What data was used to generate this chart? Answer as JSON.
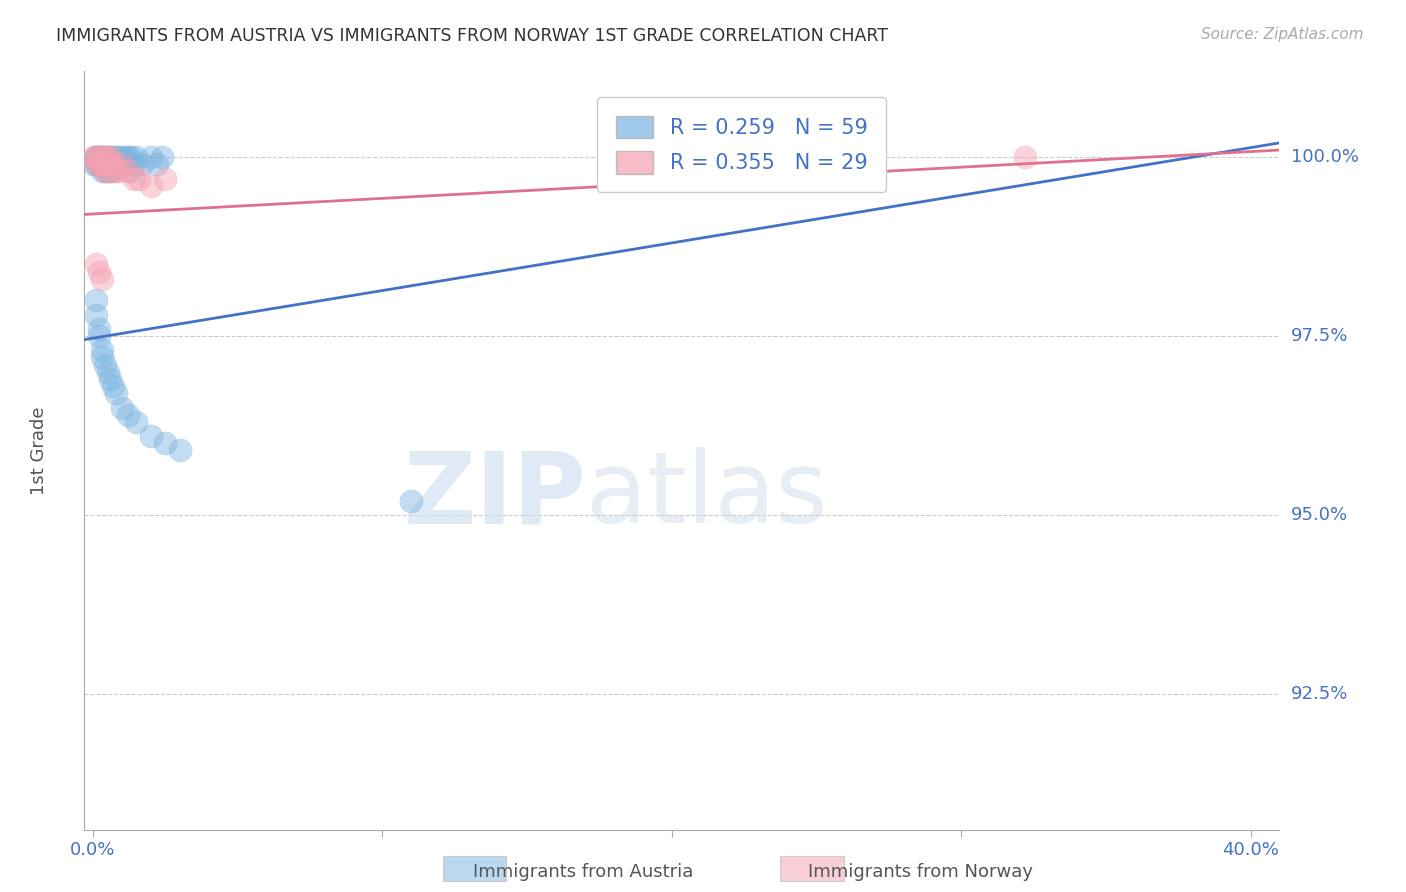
{
  "title": "IMMIGRANTS FROM AUSTRIA VS IMMIGRANTS FROM NORWAY 1ST GRADE CORRELATION CHART",
  "source": "Source: ZipAtlas.com",
  "ylabel": "1st Grade",
  "ytick_labels": [
    "100.0%",
    "97.5%",
    "95.0%",
    "92.5%"
  ],
  "ytick_values": [
    1.0,
    0.975,
    0.95,
    0.925
  ],
  "ymin": 0.906,
  "ymax": 1.012,
  "xmin": -0.003,
  "xmax": 0.41,
  "austria_R": 0.259,
  "austria_N": 59,
  "norway_R": 0.355,
  "norway_N": 29,
  "austria_color": "#7ab3e0",
  "norway_color": "#f4a0b0",
  "austria_line_color": "#4472c4",
  "norway_line_color": "#e07090",
  "background_color": "#ffffff",
  "grid_color": "#cccccc",
  "axis_color": "#aaaaaa",
  "title_color": "#333333",
  "label_color": "#4472c4",
  "austria_line_x0": -0.003,
  "austria_line_x1": 0.41,
  "austria_line_y0": 0.9745,
  "austria_line_y1": 1.002,
  "norway_line_x0": -0.003,
  "norway_line_x1": 0.41,
  "norway_line_y0": 0.992,
  "norway_line_y1": 1.001,
  "austria_scatter_x": [
    0.001,
    0.001,
    0.001,
    0.002,
    0.002,
    0.002,
    0.002,
    0.003,
    0.003,
    0.003,
    0.003,
    0.004,
    0.004,
    0.004,
    0.005,
    0.005,
    0.005,
    0.005,
    0.006,
    0.006,
    0.006,
    0.007,
    0.007,
    0.007,
    0.008,
    0.008,
    0.009,
    0.01,
    0.01,
    0.011,
    0.011,
    0.012,
    0.013,
    0.014,
    0.015,
    0.017,
    0.02,
    0.0,
    0.001,
    0.001,
    0.002,
    0.002,
    0.003,
    0.003,
    0.004,
    0.005,
    0.006,
    0.007,
    0.008,
    0.01,
    0.012,
    0.015,
    0.02,
    0.025,
    0.03,
    0.013,
    0.022,
    0.024,
    0.11
  ],
  "austria_scatter_y": [
    1.0,
    1.0,
    0.999,
    1.0,
    1.0,
    0.999,
    0.999,
    1.0,
    1.0,
    0.999,
    0.998,
    1.0,
    0.999,
    0.998,
    1.0,
    1.0,
    0.999,
    0.998,
    1.0,
    0.999,
    0.998,
    1.0,
    0.999,
    0.998,
    1.0,
    0.999,
    1.0,
    1.0,
    0.999,
    1.0,
    0.999,
    1.0,
    1.0,
    0.999,
    1.0,
    0.999,
    1.0,
    0.999,
    0.98,
    0.978,
    0.976,
    0.975,
    0.973,
    0.972,
    0.971,
    0.97,
    0.969,
    0.968,
    0.967,
    0.965,
    0.964,
    0.963,
    0.961,
    0.96,
    0.959,
    0.998,
    0.999,
    1.0,
    0.952
  ],
  "norway_scatter_x": [
    0.0,
    0.001,
    0.001,
    0.002,
    0.002,
    0.003,
    0.003,
    0.004,
    0.004,
    0.005,
    0.005,
    0.006,
    0.006,
    0.007,
    0.008,
    0.009,
    0.01,
    0.012,
    0.014,
    0.016,
    0.02,
    0.025,
    0.001,
    0.002,
    0.003,
    0.25,
    0.322,
    0.004,
    0.005
  ],
  "norway_scatter_y": [
    1.0,
    1.0,
    0.999,
    1.0,
    0.999,
    1.0,
    0.999,
    1.0,
    0.999,
    1.0,
    0.999,
    1.0,
    0.999,
    0.999,
    0.998,
    0.998,
    0.999,
    0.998,
    0.997,
    0.997,
    0.996,
    0.997,
    0.985,
    0.984,
    0.983,
    1.0,
    1.0,
    0.998,
    0.998
  ]
}
